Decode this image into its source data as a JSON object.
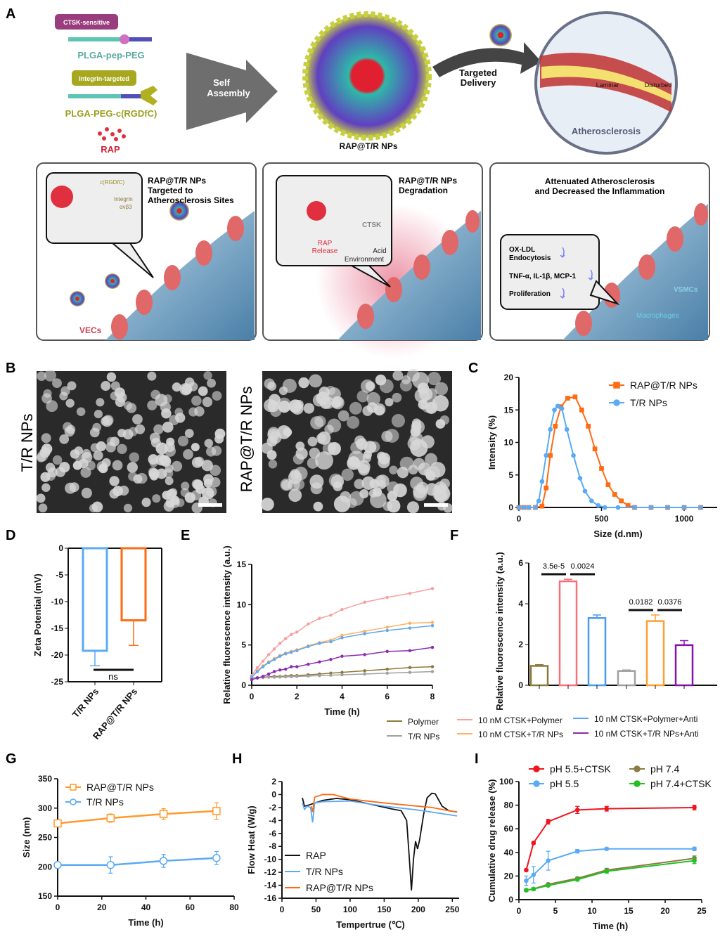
{
  "panel_labels": [
    "A",
    "B",
    "C",
    "D",
    "E",
    "F",
    "G",
    "H",
    "I"
  ],
  "panel_a": {
    "ctsk_sensitive": "CTSK-sensitive",
    "plga_pep_peg": "PLGA-pep-PEG",
    "integrin_targeted": "Integrin-targeted",
    "plga_peg_rgd": "PLGA-PEG-c(RGDfC)",
    "rap": "RAP",
    "self_assembly_1": "Self",
    "self_assembly_2": "Assembly",
    "np_name": "RAP@T/R NPs",
    "targeted_1": "Targeted",
    "targeted_2": "Delivery",
    "laminar": "Laminar",
    "disturbed": "Disturbed",
    "atherosclerosis": "Atherosclerosis",
    "box1": {
      "title1": "RAP@T/R NPs",
      "title2": "Targeted to",
      "title3": "Atherosclerosis Sites",
      "rgd": "c(RGDfC)",
      "integrin1": "Integrin",
      "integrin2": "αvβ3",
      "vecs": "VECs"
    },
    "box2": {
      "title1": "RAP@T/R NPs",
      "title2": "Degradation",
      "ctsk": "CTSK",
      "rap1": "RAP",
      "rap2": "Release",
      "acid1": "Acid",
      "acid2": "Environment"
    },
    "box3": {
      "title1": "Attenuated Atherosclerosis",
      "title2": "and Decreased the Inflammation",
      "oxldl1": "OX-LDL",
      "oxldl2": "Endocytosis",
      "tnf": "TNF-α, IL-1β, MCP-1",
      "prolif": "Proliferation",
      "vsmcs": "VSMCs",
      "macro": "Macrophages"
    }
  },
  "panel_b": {
    "label_left": "T/R NPs",
    "label_right": "RAP@T/R NPs"
  },
  "colors": {
    "orange": "#ff6a13",
    "blue": "#5aaaf5",
    "pink": "#f7a0a0",
    "lightorange": "#ffb060",
    "lightblue": "#60a8f0",
    "purple": "#8a2bb0",
    "olive": "#8c7a3c",
    "gray": "#a0a0a0",
    "red": "#f0141e",
    "green": "#22c022",
    "brown": "#8c7a48",
    "black": "#111111"
  },
  "chart_data": [
    {
      "id": "C",
      "type": "line",
      "xlabel": "Size (d.nm)",
      "ylabel": "Intensity (%)",
      "xlim": [
        0,
        1200
      ],
      "ylim": [
        0,
        20
      ],
      "xticks": [
        0,
        500,
        1000
      ],
      "yticks": [
        0,
        5,
        10,
        15,
        20
      ],
      "legend": "top-right",
      "series": [
        {
          "name": "RAP@T/R NPs",
          "color": "#ff6a13",
          "marker": "square",
          "x": [
            0,
            30,
            60,
            100,
            140,
            165,
            190,
            220,
            255,
            295,
            340,
            380,
            420,
            460,
            500,
            540,
            580,
            620,
            660,
            700,
            800,
            900,
            1000,
            1100
          ],
          "y": [
            0,
            0,
            0,
            0,
            0.2,
            3,
            8,
            12.5,
            15.5,
            16.8,
            17,
            15,
            12.5,
            9,
            6,
            3.5,
            2,
            1,
            0.3,
            0,
            0,
            0,
            0,
            0
          ]
        },
        {
          "name": "T/R NPs",
          "color": "#5aaaf5",
          "marker": "circle",
          "x": [
            0,
            30,
            60,
            100,
            120,
            140,
            165,
            190,
            215,
            235,
            260,
            290,
            330,
            370,
            400,
            440,
            480,
            520,
            600,
            700,
            800,
            900,
            1000,
            1100
          ],
          "y": [
            0,
            0,
            0,
            0,
            1,
            4,
            8,
            12,
            15,
            15.6,
            15.2,
            12,
            8,
            4.5,
            2.5,
            1,
            0.3,
            0,
            0,
            0,
            0,
            0,
            0,
            0
          ]
        }
      ]
    },
    {
      "id": "D",
      "type": "bar",
      "ylabel": "Zeta Potential (mV)",
      "ylim": [
        -25,
        0
      ],
      "yticks": [
        0,
        -5,
        -10,
        -15,
        -20,
        -25
      ],
      "categories": [
        "T/R NPs",
        "RAP@T/R NPs"
      ],
      "values": [
        -19.2,
        -13.5
      ],
      "errors": [
        2.8,
        4.7
      ],
      "colors": [
        "#5aaaf5",
        "#ff6a13"
      ],
      "annotation": "ns"
    },
    {
      "id": "E",
      "type": "line",
      "xlabel": "Time (h)",
      "ylabel": "Relative fluorescence intensity (a.u.)",
      "xlim": [
        0,
        8
      ],
      "ylim": [
        0,
        15
      ],
      "xticks": [
        0,
        2,
        4,
        6,
        8
      ],
      "yticks": [
        0,
        5,
        10,
        15
      ],
      "legend": "bottom",
      "x": [
        0,
        0.25,
        0.5,
        0.75,
        1,
        1.25,
        1.5,
        1.75,
        2,
        2.5,
        3,
        3.5,
        4,
        5,
        6,
        7,
        8
      ],
      "series": [
        {
          "name": "Polymer",
          "color": "#8c7a3c",
          "y": [
            0.9,
            0.95,
            1,
            1.05,
            1.1,
            1.1,
            1.15,
            1.2,
            1.2,
            1.3,
            1.4,
            1.5,
            1.6,
            1.8,
            2.0,
            2.2,
            2.3
          ]
        },
        {
          "name": "T/R NPs",
          "color": "#a0a0a0",
          "y": [
            0.9,
            0.92,
            0.95,
            1,
            1,
            1.02,
            1.05,
            1.07,
            1.1,
            1.15,
            1.2,
            1.25,
            1.3,
            1.4,
            1.5,
            1.6,
            1.7
          ]
        },
        {
          "name": "10 nM CTSK+Polymer",
          "color": "#f7a0a0",
          "y": [
            1.2,
            2.2,
            3,
            3.8,
            4.5,
            5.2,
            5.8,
            6.3,
            6.6,
            7.6,
            8.3,
            8.7,
            9.4,
            10.3,
            10.9,
            11.4,
            12.0
          ]
        },
        {
          "name": "10 nM CTSK+T/R NPs",
          "color": "#ffb060",
          "y": [
            1,
            1.8,
            2.4,
            2.9,
            3.3,
            3.7,
            4,
            4.2,
            4.4,
            4.9,
            5.3,
            5.6,
            6.2,
            6.7,
            7.2,
            7.7,
            7.8
          ]
        },
        {
          "name": "10 nM CTSK+Polymer+Anti",
          "color": "#60a8f0",
          "y": [
            1,
            1.7,
            2.3,
            2.8,
            3.2,
            3.6,
            3.9,
            4.1,
            4.3,
            4.8,
            5.2,
            5.4,
            5.9,
            6.4,
            6.8,
            7.1,
            7.4
          ]
        },
        {
          "name": "10 nM CTSK+T/R NPs+Anti",
          "color": "#8a2bb0",
          "y": [
            0.7,
            0.9,
            1.1,
            1.4,
            1.7,
            1.9,
            2.0,
            2.3,
            2.3,
            2.6,
            2.9,
            3.2,
            3.6,
            3.8,
            4.2,
            4.3,
            4.7
          ]
        }
      ]
    },
    {
      "id": "F",
      "type": "bar",
      "ylabel": "Relative fluorescence intensity (a.u.)",
      "ylim": [
        0,
        6
      ],
      "yticks": [
        0,
        2,
        4,
        6
      ],
      "categories": [
        "Polymer",
        "10 nM CTSK+Polymer",
        "10 nM CTSK+Polymer+Anti",
        "T/R NPs",
        "10 nM CTSK+T/R NPs",
        "10 nM CTSK+T/R NPs+Anti"
      ],
      "values": [
        0.95,
        5.1,
        3.3,
        0.7,
        3.15,
        1.97
      ],
      "errors": [
        0.06,
        0.1,
        0.15,
        0.05,
        0.3,
        0.22
      ],
      "colors": [
        "#8c7a3c",
        "#f7707a",
        "#4a9af0",
        "#a0a0a0",
        "#ffa030",
        "#8a10b0"
      ],
      "significance": [
        {
          "between": [
            0,
            1
          ],
          "p": "3.5e-5"
        },
        {
          "between": [
            1,
            2
          ],
          "p": "0.0024"
        },
        {
          "between": [
            3,
            4
          ],
          "p": "0.0182"
        },
        {
          "between": [
            4,
            5
          ],
          "p": "0.0376"
        }
      ]
    },
    {
      "id": "G",
      "type": "line",
      "xlabel": "Time (h)",
      "ylabel": "Size (nm)",
      "xlim": [
        0,
        80
      ],
      "ylim": [
        150,
        350
      ],
      "xticks": [
        0,
        20,
        40,
        60,
        80
      ],
      "yticks": [
        150,
        200,
        250,
        300,
        350
      ],
      "legend": "top-left",
      "series": [
        {
          "name": "RAP@T/R NPs",
          "color": "#ff9a2a",
          "marker": "square",
          "x": [
            0,
            24,
            48,
            72
          ],
          "y": [
            274,
            283,
            290,
            295
          ],
          "err": [
            3,
            7,
            9,
            14
          ]
        },
        {
          "name": "T/R NPs",
          "color": "#5aaaf5",
          "marker": "circle",
          "x": [
            0,
            24,
            48,
            72
          ],
          "y": [
            203,
            203,
            210,
            215
          ],
          "err": [
            3,
            14,
            11,
            11
          ]
        }
      ]
    },
    {
      "id": "H",
      "type": "line",
      "xlabel": "Tempertrue (℃)",
      "ylabel": "Flow Heat (W/g)",
      "xlim": [
        0,
        260
      ],
      "ylim": [
        -16,
        2
      ],
      "xticks": [
        0,
        50,
        100,
        150,
        200,
        250
      ],
      "yticks": [
        2,
        0,
        -2,
        -4,
        -6,
        -8,
        -10,
        -12,
        -14,
        -16
      ],
      "legend": "bottom-left",
      "series": [
        {
          "name": "RAP",
          "color": "#111111",
          "x": [
            30,
            33,
            40,
            60,
            80,
            100,
            130,
            160,
            175,
            183,
            187,
            190,
            193,
            196,
            199,
            202,
            208,
            213,
            220,
            225,
            235,
            245,
            257
          ],
          "y": [
            -0.5,
            -1.8,
            -1.6,
            -0.9,
            -0.6,
            -0.8,
            -1.5,
            -2.2,
            -2.5,
            -4,
            -10,
            -14.8,
            -10,
            -7.2,
            -8.4,
            -7,
            -3,
            -0.5,
            0.2,
            0.1,
            -1.8,
            -2.5,
            -2.7
          ]
        },
        {
          "name": "T/R NPs",
          "color": "#5aaaf5",
          "x": [
            30,
            33,
            37,
            42,
            45,
            48,
            60,
            100,
            150,
            200,
            257
          ],
          "y": [
            -1.3,
            -2.3,
            -1.8,
            -2,
            -4.3,
            -1.3,
            -1.1,
            -1,
            -1.8,
            -2.4,
            -3.3
          ]
        },
        {
          "name": "RAP@T/R NPs",
          "color": "#ff6a13",
          "x": [
            43,
            45,
            48,
            60,
            75,
            100,
            150,
            200,
            220,
            240,
            257
          ],
          "y": [
            -1.8,
            -2.7,
            -0.4,
            0,
            0,
            -0.7,
            -1.3,
            -1.8,
            -2,
            -2.4,
            -2.7
          ]
        }
      ]
    },
    {
      "id": "I",
      "type": "line",
      "xlabel": "Time (h)",
      "ylabel": "Cumulative drug release (%)",
      "xlim": [
        0,
        25
      ],
      "ylim": [
        0,
        100
      ],
      "xticks": [
        0,
        5,
        10,
        15,
        20,
        25
      ],
      "yticks": [
        0,
        20,
        40,
        60,
        80,
        100
      ],
      "legend": "top",
      "series": [
        {
          "name": "pH 5.5+CTSK",
          "color": "#f0141e",
          "x": [
            1,
            2,
            4,
            8,
            12,
            24
          ],
          "y": [
            25,
            48,
            66,
            76,
            77,
            78
          ],
          "err": [
            1,
            1,
            2,
            3,
            2,
            2
          ]
        },
        {
          "name": "pH 5.5",
          "color": "#5aaaf5",
          "x": [
            1,
            2,
            4,
            8,
            12,
            24
          ],
          "y": [
            16,
            21,
            33,
            41,
            43,
            43
          ],
          "err": [
            4,
            7,
            8,
            1.5,
            1,
            1.5
          ]
        },
        {
          "name": "pH 7.4",
          "color": "#8c7a48",
          "x": [
            1,
            2,
            4,
            8,
            12,
            24
          ],
          "y": [
            8,
            9,
            13,
            18,
            25,
            35
          ],
          "err": [
            1,
            1,
            1,
            1,
            1.5,
            2
          ]
        },
        {
          "name": "pH 7.4+CTSK",
          "color": "#22c022",
          "x": [
            1,
            2,
            4,
            8,
            12,
            24
          ],
          "y": [
            8,
            9,
            12,
            17,
            24,
            33
          ],
          "err": [
            1,
            1,
            1,
            1,
            1.5,
            2.5
          ]
        }
      ]
    }
  ]
}
